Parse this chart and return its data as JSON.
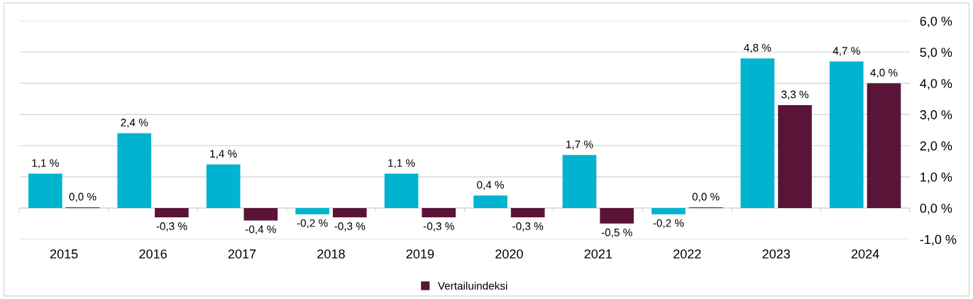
{
  "chart_data": {
    "type": "bar",
    "categories": [
      "2015",
      "2016",
      "2017",
      "2018",
      "2019",
      "2020",
      "2021",
      "2022",
      "2023",
      "2024"
    ],
    "series": [
      {
        "color": "#00b4d0",
        "values": [
          1.1,
          2.4,
          1.4,
          -0.2,
          1.1,
          0.4,
          1.7,
          -0.2,
          4.8,
          4.7
        ],
        "value_labels": [
          "1,1 %",
          "2,4 %",
          "1,4 %",
          "-0,2 %",
          "1,1 %",
          "0,4 %",
          "1,7 %",
          "-0,2 %",
          "4,8 %",
          "4,7 %"
        ]
      },
      {
        "name": "Vertailuindeksi",
        "color": "#5a1438",
        "values": [
          0.02,
          -0.3,
          -0.4,
          -0.3,
          -0.3,
          -0.3,
          -0.5,
          0.02,
          3.3,
          4.0
        ],
        "value_labels": [
          "0,0 %",
          "-0,3 %",
          "-0,4 %",
          "-0,3 %",
          "-0,3 %",
          "-0,3 %",
          "-0,5 %",
          "0,0 %",
          "3,3 %",
          "4,0 %"
        ]
      }
    ],
    "ylim": [
      -1,
      6
    ],
    "yticks": [
      {
        "value": -1,
        "label": "-1,0 %"
      },
      {
        "value": 0,
        "label": "0,0 %"
      },
      {
        "value": 1,
        "label": "1,0 %"
      },
      {
        "value": 2,
        "label": "2,0 %"
      },
      {
        "value": 3,
        "label": "3,0 %"
      },
      {
        "value": 4,
        "label": "4,0 %"
      },
      {
        "value": 5,
        "label": "5,0 %"
      },
      {
        "value": 6,
        "label": "6,0 %"
      }
    ],
    "grid": "y",
    "legend": "bottom"
  }
}
